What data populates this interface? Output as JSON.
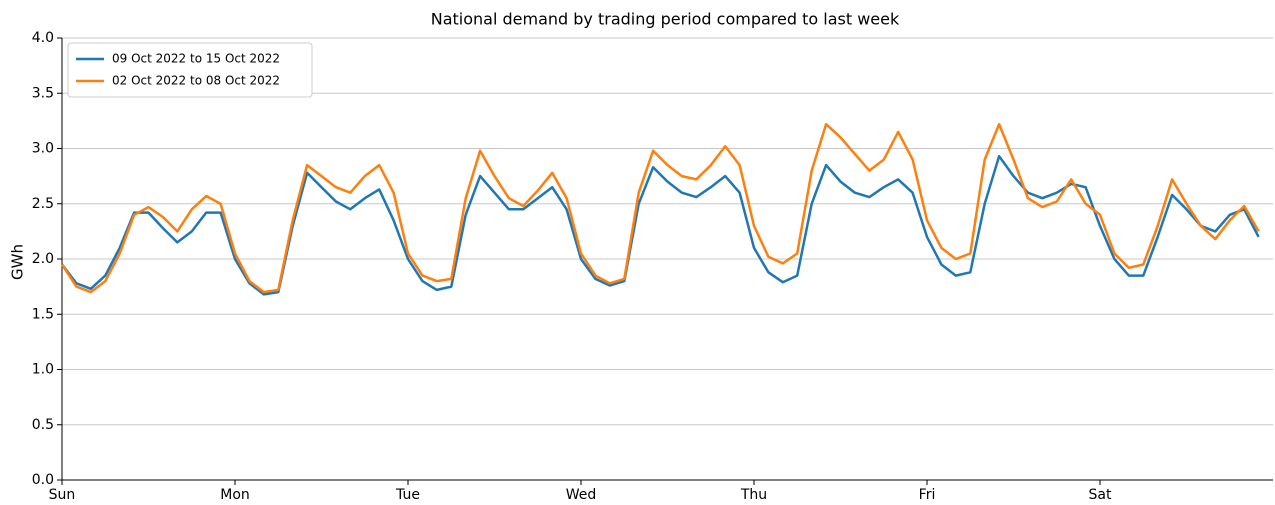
{
  "chart_data": {
    "type": "line",
    "title": "National demand by trading period compared to last week",
    "y_label": "GWh",
    "x": [
      0,
      2,
      4,
      6,
      8,
      10,
      12,
      14,
      16,
      18,
      20,
      22,
      24,
      26,
      28,
      30,
      32,
      34,
      36,
      38,
      40,
      42,
      44,
      46,
      48,
      50,
      52,
      54,
      56,
      58,
      60,
      62,
      64,
      66,
      68,
      70,
      72,
      74,
      76,
      78,
      80,
      82,
      84,
      86,
      88,
      90,
      92,
      94,
      96,
      98,
      100,
      102,
      104,
      106,
      108,
      110,
      112,
      114,
      116,
      118,
      120,
      122,
      124,
      126,
      128,
      130,
      132,
      134,
      136,
      138,
      140,
      142,
      144,
      146,
      148,
      150,
      152,
      154,
      156,
      158,
      160,
      162,
      164,
      166
    ],
    "series": [
      {
        "name": "09 Oct 2022 to 15 Oct 2022",
        "color": "#1f77b4",
        "values": [
          1.95,
          1.78,
          1.73,
          1.85,
          2.1,
          2.42,
          2.42,
          2.28,
          2.15,
          2.25,
          2.42,
          2.42,
          2.0,
          1.78,
          1.68,
          1.7,
          2.3,
          2.78,
          2.65,
          2.52,
          2.45,
          2.55,
          2.63,
          2.35,
          2.0,
          1.8,
          1.72,
          1.75,
          2.4,
          2.75,
          2.6,
          2.45,
          2.45,
          2.55,
          2.65,
          2.45,
          2.0,
          1.82,
          1.76,
          1.8,
          2.5,
          2.83,
          2.7,
          2.6,
          2.56,
          2.65,
          2.75,
          2.6,
          2.1,
          1.88,
          1.79,
          1.85,
          2.5,
          2.85,
          2.7,
          2.6,
          2.56,
          2.65,
          2.72,
          2.6,
          2.2,
          1.95,
          1.85,
          1.88,
          2.5,
          2.93,
          2.75,
          2.6,
          2.55,
          2.6,
          2.68,
          2.65,
          2.3,
          2.0,
          1.85,
          1.85,
          2.2,
          2.58,
          2.45,
          2.3,
          2.25,
          2.4,
          2.45,
          2.2
        ]
      },
      {
        "name": "02 Oct 2022 to 08 Oct 2022",
        "color": "#ff7f0e",
        "values": [
          1.95,
          1.75,
          1.7,
          1.8,
          2.05,
          2.4,
          2.47,
          2.38,
          2.25,
          2.45,
          2.57,
          2.5,
          2.05,
          1.8,
          1.7,
          1.72,
          2.35,
          2.85,
          2.75,
          2.65,
          2.6,
          2.75,
          2.85,
          2.6,
          2.05,
          1.85,
          1.8,
          1.82,
          2.55,
          2.98,
          2.75,
          2.55,
          2.48,
          2.62,
          2.78,
          2.55,
          2.05,
          1.85,
          1.78,
          1.82,
          2.6,
          2.98,
          2.85,
          2.75,
          2.72,
          2.85,
          3.02,
          2.85,
          2.3,
          2.02,
          1.96,
          2.05,
          2.8,
          3.22,
          3.1,
          2.95,
          2.8,
          2.9,
          3.15,
          2.9,
          2.35,
          2.1,
          2.0,
          2.05,
          2.9,
          3.22,
          2.9,
          2.55,
          2.47,
          2.52,
          2.72,
          2.5,
          2.4,
          2.05,
          1.92,
          1.95,
          2.3,
          2.72,
          2.5,
          2.3,
          2.18,
          2.35,
          2.48,
          2.25
        ]
      }
    ],
    "xlim": [
      0,
      168
    ],
    "xticks": [
      {
        "value": 0,
        "label": "Sun"
      },
      {
        "value": 24,
        "label": "Mon"
      },
      {
        "value": 48,
        "label": "Tue"
      },
      {
        "value": 72,
        "label": "Wed"
      },
      {
        "value": 96,
        "label": "Thu"
      },
      {
        "value": 120,
        "label": "Fri"
      },
      {
        "value": 144,
        "label": "Sat"
      }
    ],
    "ylim": [
      0,
      4
    ],
    "yticks": [
      {
        "value": 0,
        "label": "0.0"
      },
      0.5,
      {
        "value": 1,
        "label": "1.0"
      },
      1.5,
      {
        "value": 2,
        "label": "2.0"
      },
      2.5,
      {
        "value": 3,
        "label": "3.0"
      },
      3.5,
      {
        "value": 4,
        "label": "4.0"
      }
    ],
    "grid": true,
    "legend": "upper left"
  }
}
